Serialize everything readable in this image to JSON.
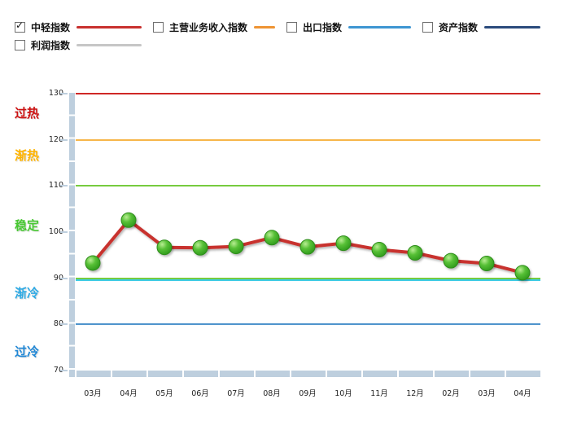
{
  "legend": {
    "items": [
      {
        "label": "中轻指数",
        "checked": true,
        "color": "#C8302E"
      },
      {
        "label": "主营业务收入指数",
        "checked": false,
        "color": "#EE9433"
      },
      {
        "label": "出口指数",
        "checked": false,
        "color": "#3E96D2"
      },
      {
        "label": "资产指数",
        "checked": false,
        "color": "#2B4B7C"
      },
      {
        "label": "利润指数",
        "checked": false,
        "color": "#C6C6C6"
      }
    ]
  },
  "chart_data": {
    "type": "line",
    "categories": [
      "03月",
      "04月",
      "05月",
      "06月",
      "07月",
      "08月",
      "09月",
      "10月",
      "11月",
      "12月",
      "02月",
      "03月",
      "04月"
    ],
    "series": [
      {
        "name": "中轻指数",
        "line_color": "#C8302E",
        "marker_color": "#4DBB30",
        "values": [
          93.3,
          102.6,
          96.7,
          96.6,
          96.9,
          98.8,
          96.8,
          97.6,
          96.2,
          95.5,
          93.8,
          93.2,
          91.2
        ]
      }
    ],
    "ylim": [
      70,
      130
    ],
    "y_ticks": [
      130,
      120,
      110,
      100,
      90,
      80,
      70
    ],
    "grid": false,
    "legend_position": "top-left",
    "axis_bar_color": "#BECFDE",
    "reference_lines": [
      {
        "value": 130,
        "color": "#CF2725"
      },
      {
        "value": 120,
        "color": "#F7B64A"
      },
      {
        "value": 110,
        "color": "#77CB3F"
      },
      {
        "value": 90,
        "color": "#77CB3F"
      },
      {
        "value": 90,
        "color": "#3CCBE4"
      },
      {
        "value": 80,
        "color": "#4F94CC"
      }
    ],
    "zone_labels": [
      {
        "label": "过热",
        "color": "#CC1111",
        "at_value": 126.1
      },
      {
        "label": "渐热",
        "color": "#FFB400",
        "at_value": 116.9
      },
      {
        "label": "稳定",
        "color": "#47C832",
        "at_value": 101.8
      },
      {
        "label": "渐冷",
        "color": "#2FAAE4",
        "at_value": 87.2
      },
      {
        "label": "过冷",
        "color": "#1F87D6",
        "at_value": 74.4
      }
    ]
  }
}
